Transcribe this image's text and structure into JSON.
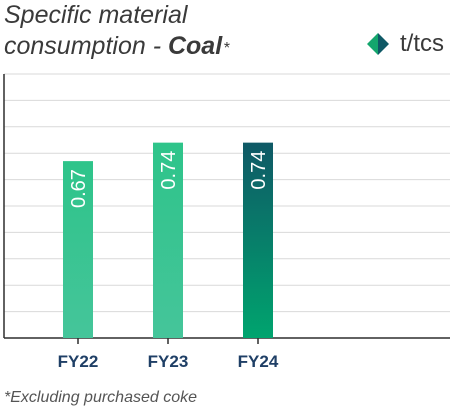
{
  "title": {
    "line1": "Specific material",
    "line2_prefix": "consumption - ",
    "line2_bold": "Coal",
    "asterisk": "*"
  },
  "legend": {
    "icon": "diamond-icon",
    "label": "t/tcs"
  },
  "footnote": "*Excluding purchased coke",
  "colors": {
    "bar_light_top": "#2ec48a",
    "bar_light_bottom": "#45c59a",
    "bar_dark_top": "#0f5966",
    "bar_dark_bottom": "#00a46e",
    "diamond_light": "#14a66d",
    "diamond_dark": "#0f5966",
    "grid": "#d9d9d9"
  },
  "chart_data": {
    "type": "bar",
    "categories": [
      "FY22",
      "FY23",
      "FY24"
    ],
    "values": [
      0.67,
      0.74,
      0.74
    ],
    "value_labels": [
      "0.67",
      "0.74",
      "0.74"
    ],
    "highlight_index": 2,
    "ylim": [
      0,
      1.0
    ],
    "grid": true,
    "units": "t/tcs"
  }
}
